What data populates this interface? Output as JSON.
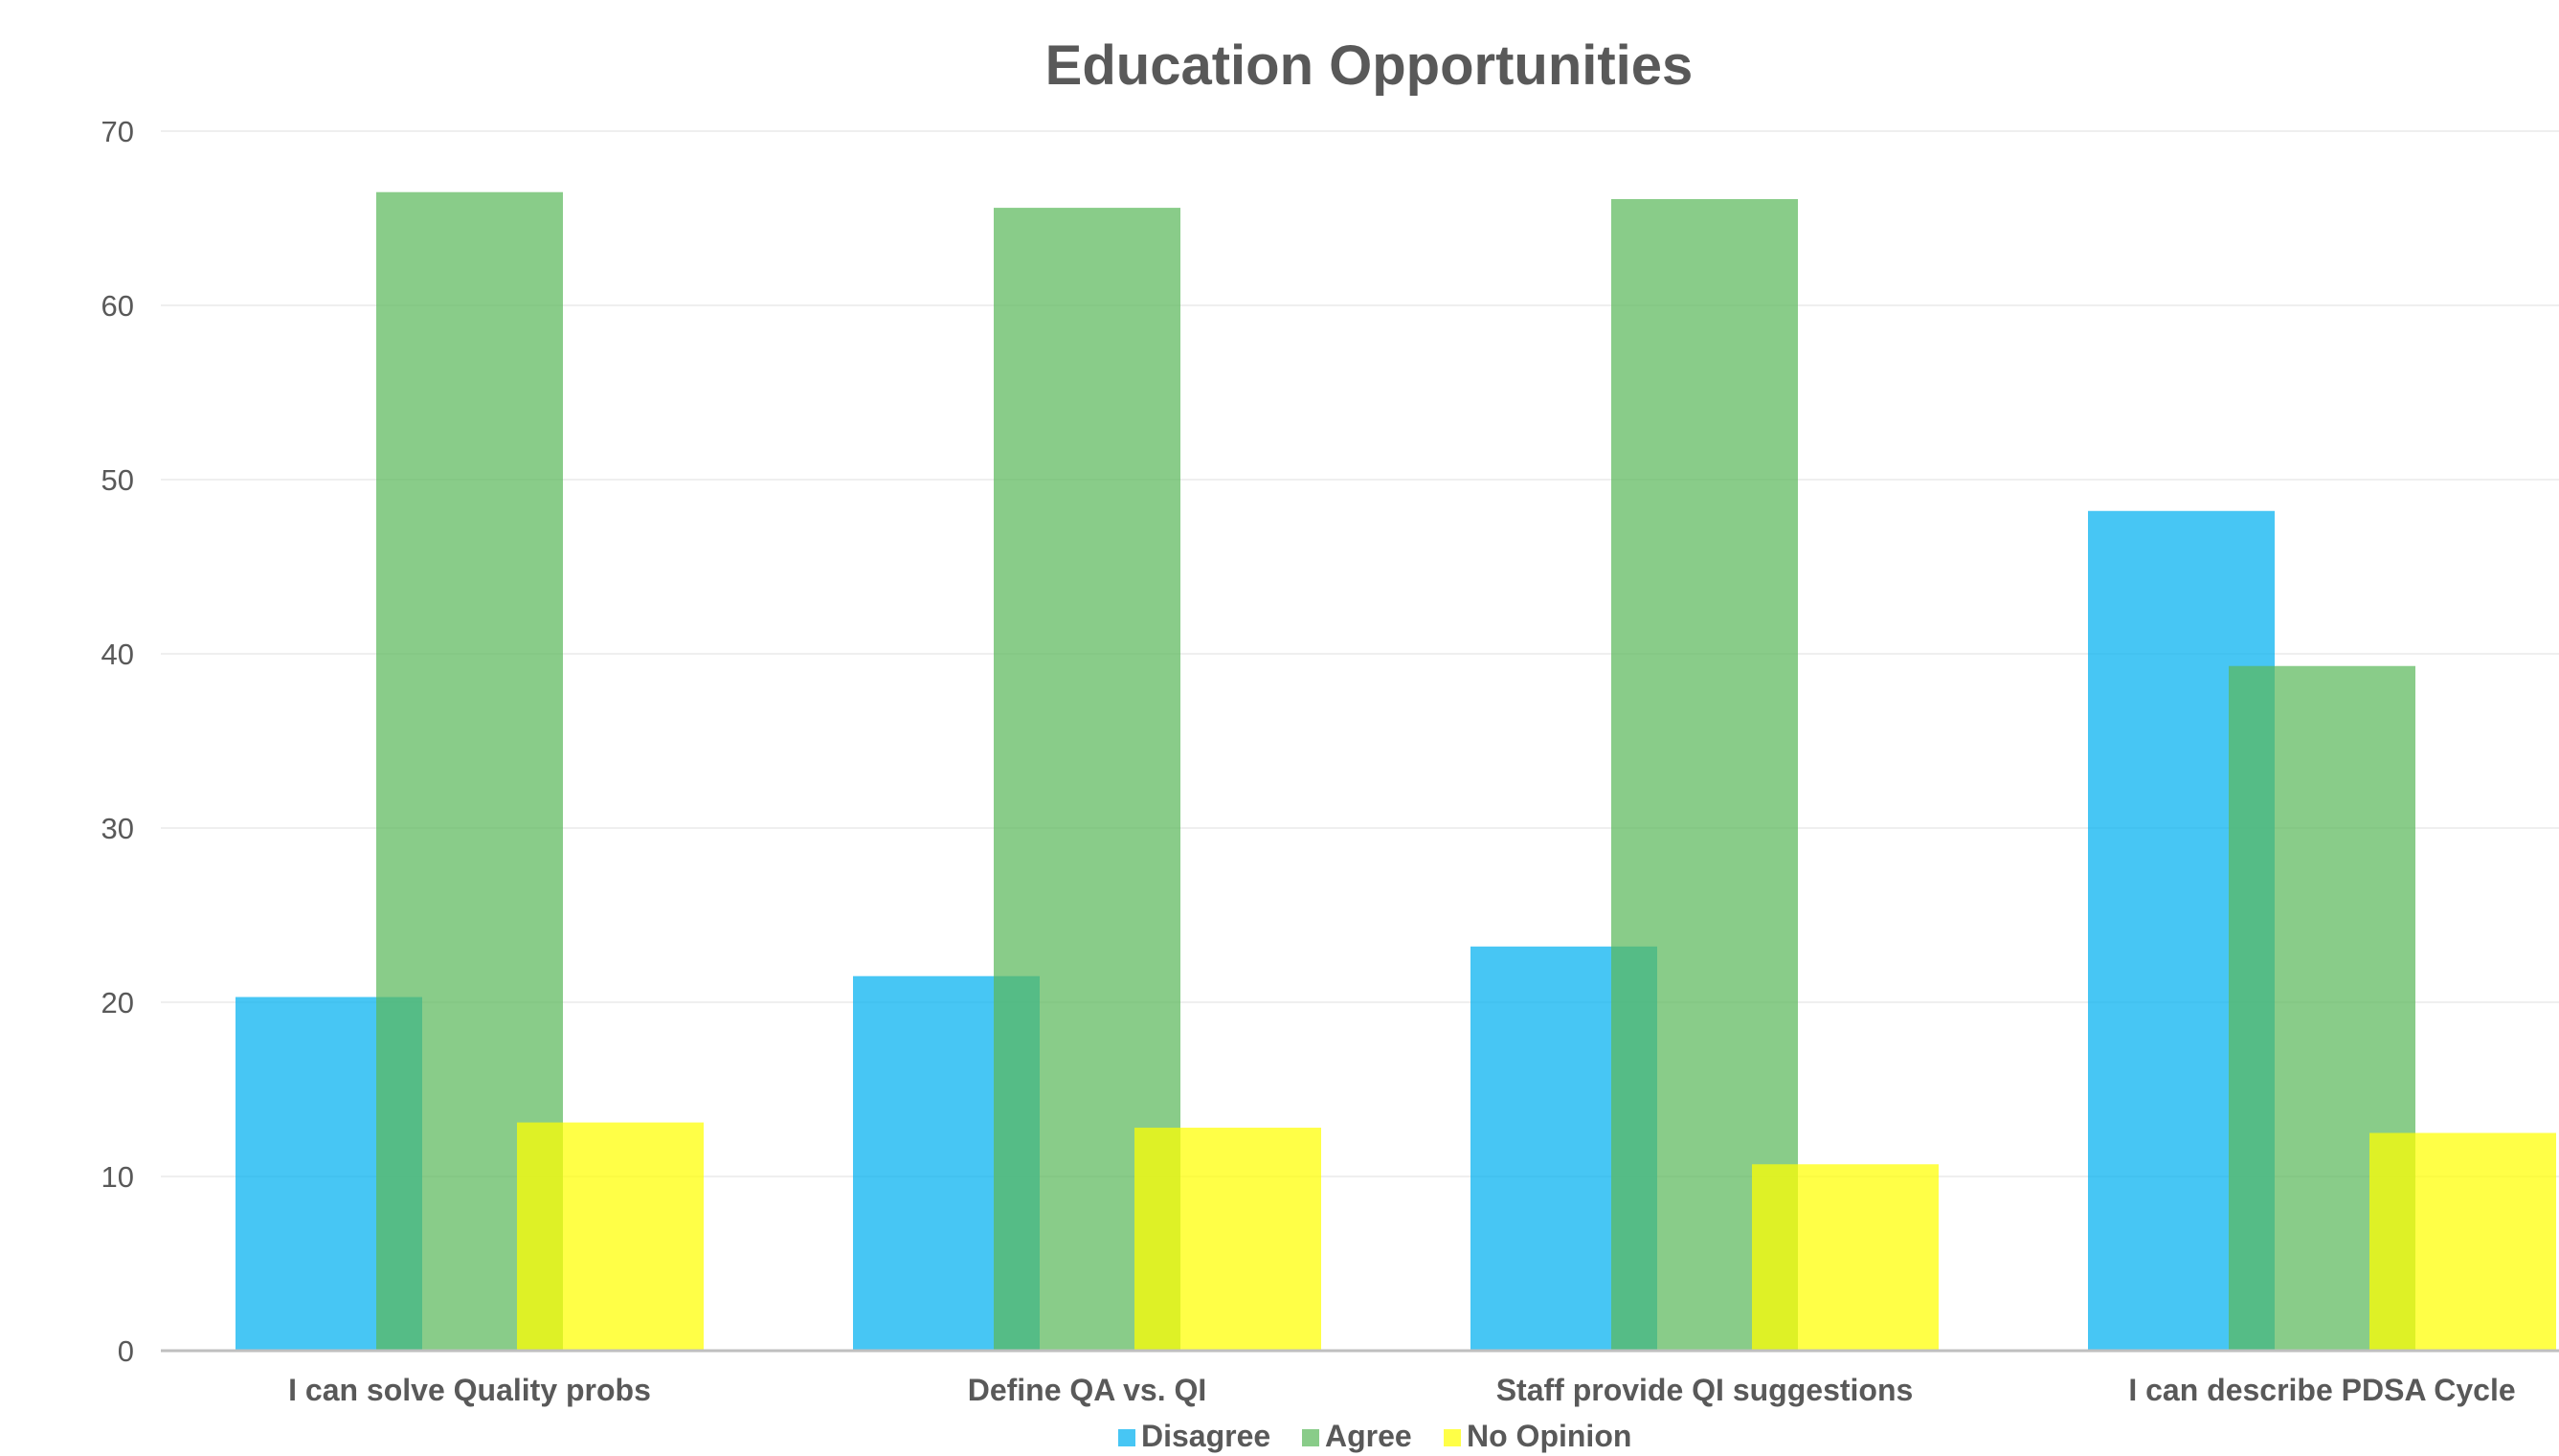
{
  "chart_data": {
    "type": "bar",
    "title": "Education Opportunities",
    "xlabel": "",
    "ylabel": "",
    "ylim": [
      0,
      70
    ],
    "yticks": [
      0,
      10,
      20,
      30,
      40,
      50,
      60,
      70
    ],
    "grid": true,
    "legend_position": "bottom",
    "categories": [
      "I can solve Quality probs",
      "Define QA vs. QI",
      "Staff provide QI suggestions",
      "I can describe PDSA Cycle"
    ],
    "series": [
      {
        "name": "Disagree",
        "color": "#00B0F0",
        "values": [
          20.3,
          21.5,
          23.2,
          48.2
        ]
      },
      {
        "name": "Agree",
        "color": "#5CB85C",
        "values": [
          66.5,
          65.6,
          66.1,
          39.3
        ]
      },
      {
        "name": "No Opinion",
        "color": "#FFFF00",
        "values": [
          13.1,
          12.8,
          10.7,
          12.5
        ]
      }
    ]
  }
}
